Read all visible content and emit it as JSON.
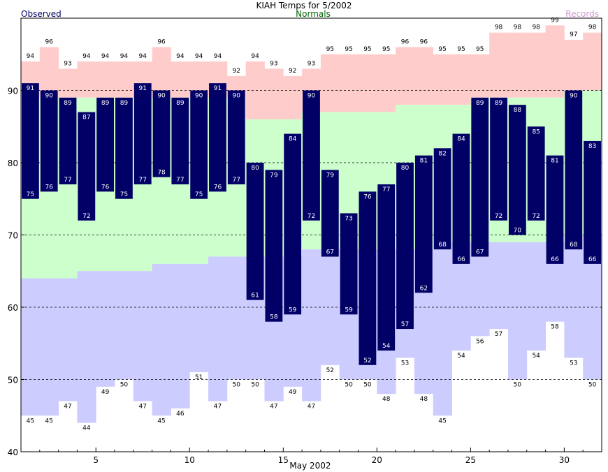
{
  "chart_data": {
    "type": "bar",
    "title": "KIAH Temps for 5/2002",
    "xlabel": "May 2002",
    "ylabel": "",
    "legend": {
      "observed": "Observed",
      "normals": "Normals",
      "records": "Records",
      "placement": "top"
    },
    "colors": {
      "observed": "#000066",
      "normals_band": "#ccffcc",
      "record_high_band": "#ffcccc",
      "record_low_band": "#ccccff",
      "observed_text": "#000066",
      "normals_text": "#006600",
      "records_text": "#cc99cc"
    },
    "ylim": [
      40,
      100
    ],
    "yticks": [
      40,
      50,
      60,
      70,
      80,
      90
    ],
    "xticks": [
      5,
      10,
      15,
      20,
      25,
      30
    ],
    "grid": "dashed horizontal at 50, 60, 70, 80, 90",
    "days": [
      1,
      2,
      3,
      4,
      5,
      6,
      7,
      8,
      9,
      10,
      11,
      12,
      13,
      14,
      15,
      16,
      17,
      18,
      19,
      20,
      21,
      22,
      23,
      24,
      25,
      26,
      27,
      28,
      29,
      30,
      31
    ],
    "series": [
      {
        "name": "Observed High",
        "values": [
          91,
          90,
          89,
          87,
          89,
          89,
          91,
          90,
          89,
          90,
          91,
          90,
          80,
          79,
          84,
          90,
          79,
          73,
          76,
          77,
          80,
          81,
          82,
          84,
          89,
          89,
          88,
          85,
          81,
          90,
          83
        ]
      },
      {
        "name": "Observed Low",
        "values": [
          75,
          76,
          77,
          72,
          76,
          75,
          77,
          78,
          77,
          75,
          76,
          77,
          61,
          58,
          59,
          72,
          67,
          59,
          52,
          54,
          57,
          62,
          68,
          66,
          67,
          72,
          70,
          72,
          66,
          68,
          66
        ]
      },
      {
        "name": "Normal High",
        "values": [
          89,
          89,
          89,
          89,
          89,
          89,
          89,
          89,
          89,
          89,
          89,
          89,
          86,
          86,
          86,
          87,
          87,
          87,
          87,
          87,
          88,
          88,
          88,
          88,
          89,
          89,
          89,
          89,
          89,
          90,
          90
        ]
      },
      {
        "name": "Normal Low",
        "values": [
          64,
          64,
          64,
          65,
          65,
          65,
          65,
          66,
          66,
          66,
          67,
          67,
          67,
          67,
          67,
          68,
          68,
          68,
          68,
          68,
          68,
          68,
          68,
          69,
          69,
          69,
          69,
          69,
          69,
          70,
          70
        ]
      },
      {
        "name": "Record High",
        "values": [
          94,
          96,
          93,
          94,
          94,
          94,
          94,
          96,
          94,
          94,
          94,
          92,
          94,
          93,
          92,
          93,
          95,
          95,
          95,
          95,
          96,
          96,
          95,
          95,
          95,
          98,
          98,
          98,
          99,
          97,
          98
        ]
      },
      {
        "name": "Record Low",
        "values": [
          45,
          45,
          47,
          44,
          49,
          50,
          47,
          45,
          46,
          51,
          47,
          50,
          50,
          47,
          49,
          47,
          52,
          50,
          50,
          48,
          53,
          48,
          45,
          54,
          56,
          57,
          50,
          54,
          58,
          53,
          50
        ]
      }
    ]
  }
}
